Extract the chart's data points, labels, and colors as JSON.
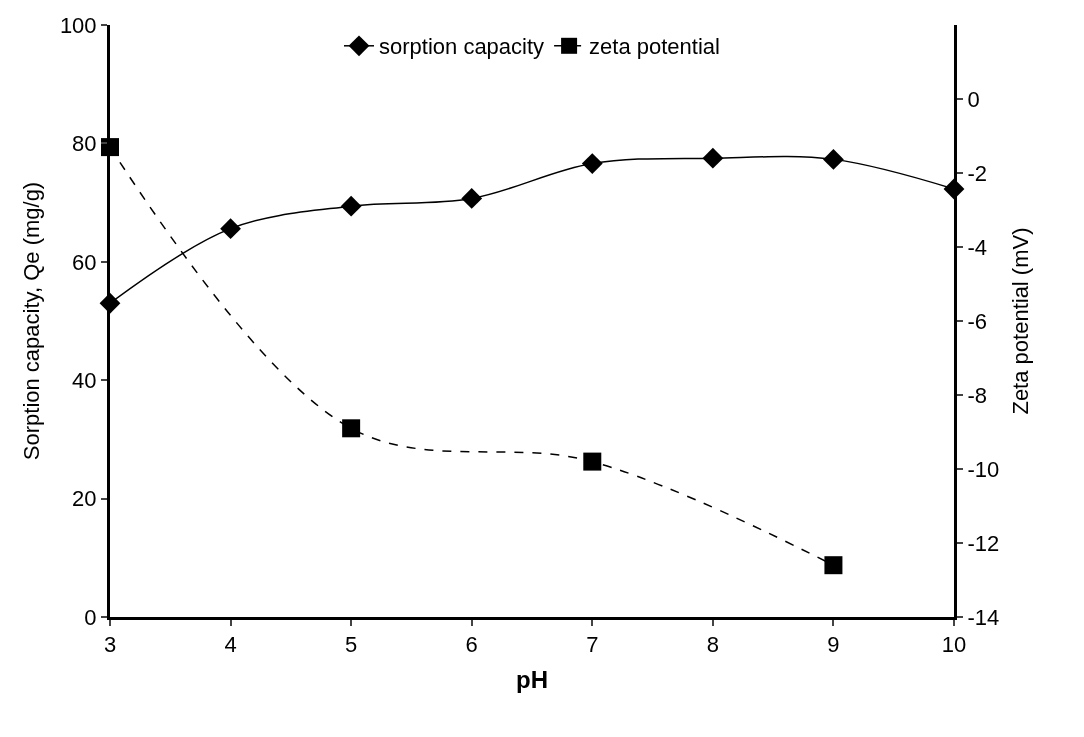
{
  "chart_data": {
    "type": "line",
    "xlabel": "pH",
    "ylabel": "Sorption capacity, Qe (mg/g)",
    "y2label": "Zeta potential (mV)",
    "xlim": [
      3,
      10
    ],
    "xticks": [
      3,
      4,
      5,
      6,
      7,
      8,
      9,
      10
    ],
    "ylim": [
      0,
      100
    ],
    "yticks": [
      0,
      20,
      40,
      60,
      80,
      100
    ],
    "y2lim": [
      -14,
      2
    ],
    "y2ticks": [
      -14,
      -12,
      -10,
      -8,
      -6,
      -4,
      -2,
      0
    ],
    "series": [
      {
        "name": "sorption capacity",
        "color": "#000000",
        "x": [
          3,
          4,
          5,
          6,
          7,
          8,
          9,
          10
        ],
        "values": [
          53,
          65.6,
          69.4,
          70.7,
          76.6,
          77.5,
          77.3,
          72.3
        ],
        "marker": "diamond",
        "line_style": "solid"
      },
      {
        "name": "zeta potential",
        "color": "#000000",
        "x": [
          3,
          5,
          7,
          9
        ],
        "values": [
          -1.3,
          -8.9,
          -9.8,
          -12.6
        ],
        "axis": "y2",
        "marker": "square",
        "line_style": "dashed"
      }
    ],
    "legend": "top"
  }
}
